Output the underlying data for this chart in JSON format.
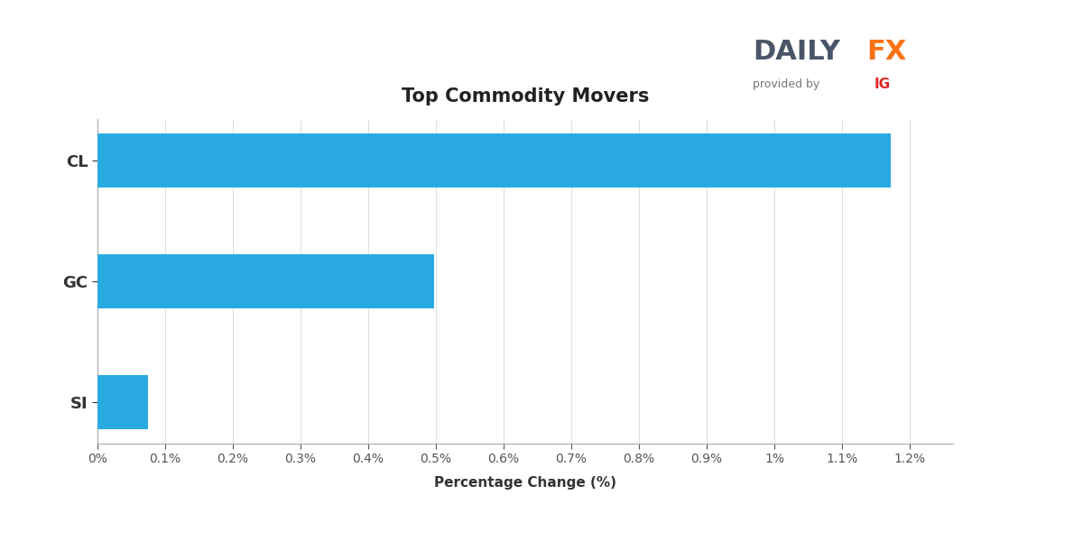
{
  "title": "Top Commodity Movers",
  "categories": [
    "SI",
    "GC",
    "CL"
  ],
  "values": [
    0.075,
    0.497,
    1.172
  ],
  "bar_color": "#29ABE2",
  "xlabel": "Percentage Change (%)",
  "xlim_max": 0.01264,
  "xticks": [
    0,
    0.001,
    0.002,
    0.003,
    0.004,
    0.005,
    0.006,
    0.007,
    0.008,
    0.009,
    0.01,
    0.011,
    0.012
  ],
  "xtick_labels": [
    "0%",
    "0.1%",
    "0.2%",
    "0.3%",
    "0.4%",
    "0.5%",
    "0.6%",
    "0.7%",
    "0.8%",
    "0.9%",
    "1%",
    "1.1%",
    "1.2%"
  ],
  "background_color": "#ffffff",
  "title_fontsize": 15,
  "xlabel_fontsize": 11,
  "ytick_fontsize": 13,
  "xtick_fontsize": 10,
  "bar_height": 0.45,
  "daily_color": "#4A5568",
  "fx_color": "#F97316",
  "ig_color": "#DC2626",
  "provided_color": "#777777"
}
